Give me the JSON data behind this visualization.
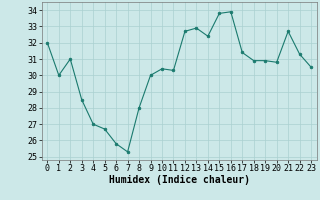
{
  "x": [
    0,
    1,
    2,
    3,
    4,
    5,
    6,
    7,
    8,
    9,
    10,
    11,
    12,
    13,
    14,
    15,
    16,
    17,
    18,
    19,
    20,
    21,
    22,
    23
  ],
  "y": [
    32,
    30,
    31,
    28.5,
    27,
    26.7,
    25.8,
    25.3,
    28,
    30,
    30.4,
    30.3,
    32.7,
    32.9,
    32.4,
    33.8,
    33.9,
    31.4,
    30.9,
    30.9,
    30.8,
    32.7,
    31.3,
    30.5
  ],
  "line_color": "#1a7a6e",
  "marker": "o",
  "marker_size": 2,
  "bg_color": "#cce8e8",
  "grid_color": "#aad0d0",
  "xlabel": "Humidex (Indice chaleur)",
  "xlabel_fontsize": 7,
  "ylim": [
    24.8,
    34.5
  ],
  "xlim": [
    -0.5,
    23.5
  ],
  "yticks": [
    25,
    26,
    27,
    28,
    29,
    30,
    31,
    32,
    33,
    34
  ],
  "xticks": [
    0,
    1,
    2,
    3,
    4,
    5,
    6,
    7,
    8,
    9,
    10,
    11,
    12,
    13,
    14,
    15,
    16,
    17,
    18,
    19,
    20,
    21,
    22,
    23
  ],
  "tick_fontsize": 6,
  "linewidth": 0.8
}
